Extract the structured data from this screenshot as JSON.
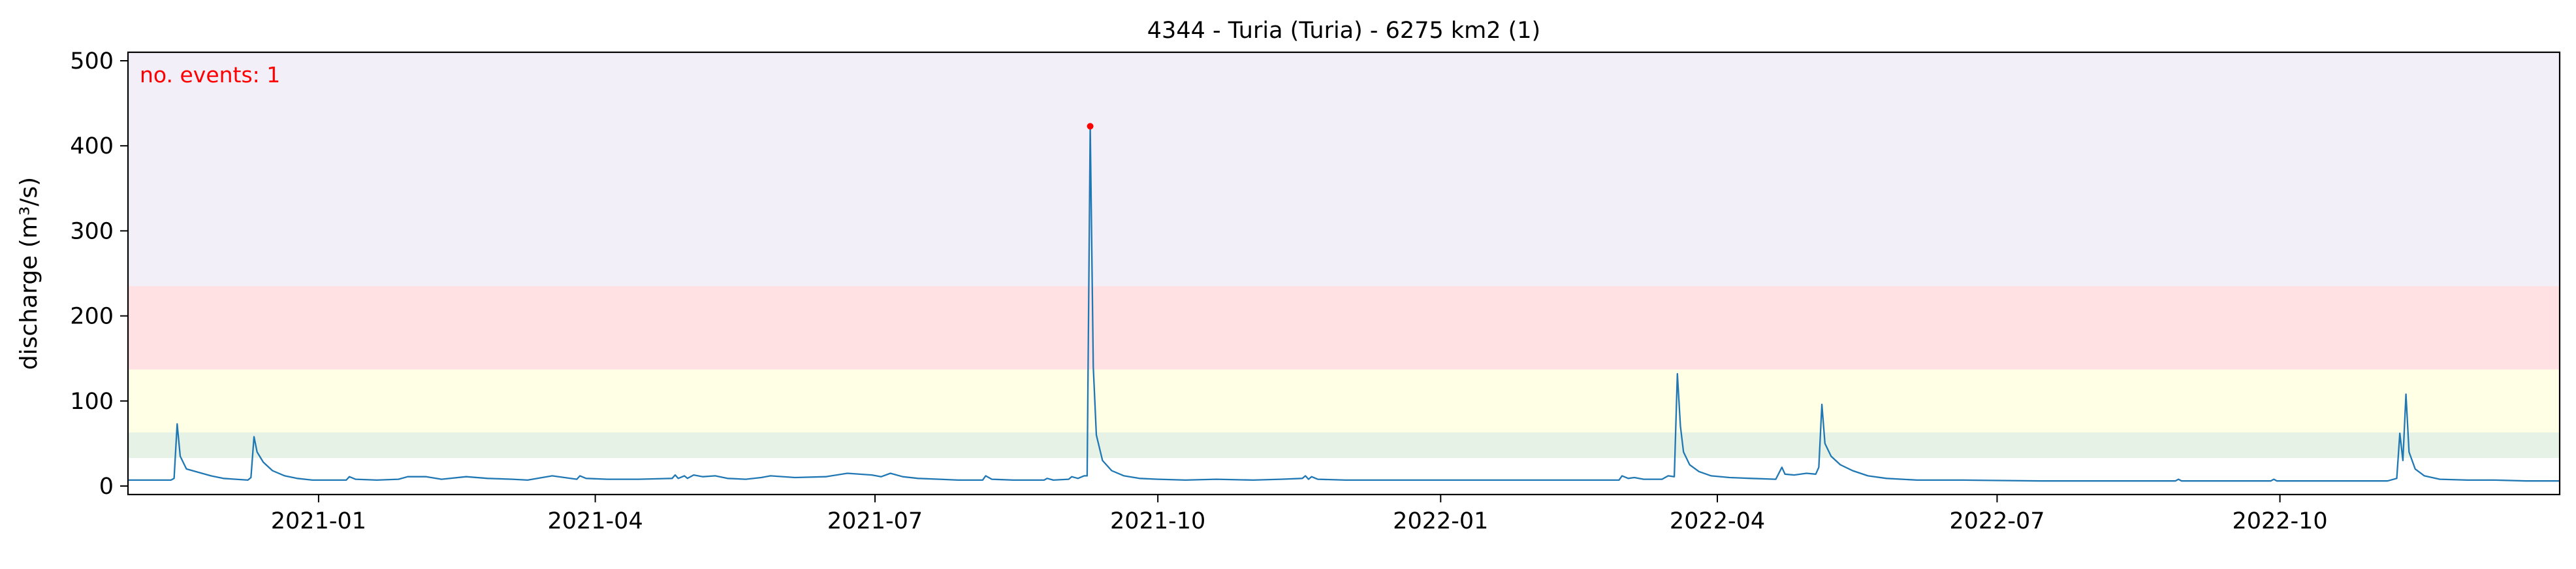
{
  "chart_data": {
    "type": "line",
    "title": "4344 - Turia (Turia) - 6275 km2 (1)",
    "xlabel": "",
    "ylabel": "discharge (m³/s)",
    "xlim": [
      "2020-10-31",
      "2022-12-31"
    ],
    "ylim": [
      -10,
      510
    ],
    "yticks": [
      0,
      100,
      200,
      300,
      400,
      500
    ],
    "xticks": [
      "2021-01",
      "2021-04",
      "2021-07",
      "2021-10",
      "2022-01",
      "2022-04",
      "2022-07",
      "2022-10"
    ],
    "grid": false,
    "threshold_bands": [
      {
        "from": 33,
        "to": 63,
        "color": "#e5f2e5"
      },
      {
        "from": 63,
        "to": 137,
        "color": "#ffffe5"
      },
      {
        "from": 137,
        "to": 235,
        "color": "#ffe1e3"
      },
      {
        "from": 235,
        "to": 510,
        "color": "#f2eff9"
      }
    ],
    "series": [
      {
        "color": "#1f77b4",
        "points": [
          [
            "2020-10-31",
            7
          ],
          [
            "2020-11-10",
            7
          ],
          [
            "2020-11-14",
            7
          ],
          [
            "2020-11-15",
            9
          ],
          [
            "2020-11-16",
            73
          ],
          [
            "2020-11-17",
            35
          ],
          [
            "2020-11-19",
            20
          ],
          [
            "2020-11-23",
            16
          ],
          [
            "2020-11-27",
            12
          ],
          [
            "2020-12-01",
            9
          ],
          [
            "2020-12-05",
            8
          ],
          [
            "2020-12-09",
            7
          ],
          [
            "2020-12-10",
            10
          ],
          [
            "2020-12-11",
            58
          ],
          [
            "2020-12-12",
            40
          ],
          [
            "2020-12-14",
            28
          ],
          [
            "2020-12-17",
            18
          ],
          [
            "2020-12-21",
            12
          ],
          [
            "2020-12-25",
            9
          ],
          [
            "2020-12-30",
            7
          ],
          [
            "2021-01-10",
            7
          ],
          [
            "2021-01-11",
            11
          ],
          [
            "2021-01-13",
            8
          ],
          [
            "2021-01-20",
            7
          ],
          [
            "2021-01-27",
            8
          ],
          [
            "2021-01-30",
            11
          ],
          [
            "2021-02-05",
            11
          ],
          [
            "2021-02-10",
            8
          ],
          [
            "2021-02-18",
            11
          ],
          [
            "2021-02-25",
            9
          ],
          [
            "2021-03-05",
            8
          ],
          [
            "2021-03-10",
            7
          ],
          [
            "2021-03-18",
            12
          ],
          [
            "2021-03-22",
            10
          ],
          [
            "2021-03-26",
            8
          ],
          [
            "2021-03-27",
            12
          ],
          [
            "2021-03-29",
            9
          ],
          [
            "2021-04-05",
            8
          ],
          [
            "2021-04-15",
            8
          ],
          [
            "2021-04-26",
            9
          ],
          [
            "2021-04-27",
            13
          ],
          [
            "2021-04-28",
            9
          ],
          [
            "2021-04-30",
            12
          ],
          [
            "2021-05-01",
            9
          ],
          [
            "2021-05-03",
            13
          ],
          [
            "2021-05-06",
            11
          ],
          [
            "2021-05-10",
            12
          ],
          [
            "2021-05-14",
            9
          ],
          [
            "2021-05-20",
            8
          ],
          [
            "2021-05-25",
            10
          ],
          [
            "2021-05-28",
            12
          ],
          [
            "2021-06-05",
            10
          ],
          [
            "2021-06-15",
            11
          ],
          [
            "2021-06-22",
            15
          ],
          [
            "2021-06-30",
            13
          ],
          [
            "2021-07-03",
            11
          ],
          [
            "2021-07-06",
            15
          ],
          [
            "2021-07-10",
            11
          ],
          [
            "2021-07-15",
            9
          ],
          [
            "2021-07-22",
            8
          ],
          [
            "2021-07-28",
            7
          ],
          [
            "2021-08-05",
            7
          ],
          [
            "2021-08-06",
            12
          ],
          [
            "2021-08-08",
            8
          ],
          [
            "2021-08-15",
            7
          ],
          [
            "2021-08-25",
            7
          ],
          [
            "2021-08-26",
            9
          ],
          [
            "2021-08-28",
            7
          ],
          [
            "2021-09-02",
            8
          ],
          [
            "2021-09-03",
            11
          ],
          [
            "2021-09-05",
            9
          ],
          [
            "2021-09-07",
            12
          ],
          [
            "2021-09-08",
            12
          ],
          [
            "2021-09-09",
            423
          ],
          [
            "2021-09-10",
            140
          ],
          [
            "2021-09-11",
            60
          ],
          [
            "2021-09-13",
            30
          ],
          [
            "2021-09-16",
            18
          ],
          [
            "2021-09-20",
            12
          ],
          [
            "2021-09-25",
            9
          ],
          [
            "2021-10-01",
            8
          ],
          [
            "2021-10-10",
            7
          ],
          [
            "2021-10-20",
            8
          ],
          [
            "2021-11-01",
            7
          ],
          [
            "2021-11-10",
            8
          ],
          [
            "2021-11-17",
            9
          ],
          [
            "2021-11-18",
            12
          ],
          [
            "2021-11-19",
            8
          ],
          [
            "2021-11-20",
            11
          ],
          [
            "2021-11-22",
            8
          ],
          [
            "2021-12-01",
            7
          ],
          [
            "2021-12-15",
            7
          ],
          [
            "2022-01-01",
            7
          ],
          [
            "2022-01-20",
            7
          ],
          [
            "2022-02-10",
            7
          ],
          [
            "2022-02-28",
            7
          ],
          [
            "2022-03-01",
            12
          ],
          [
            "2022-03-03",
            9
          ],
          [
            "2022-03-05",
            10
          ],
          [
            "2022-03-08",
            8
          ],
          [
            "2022-03-14",
            8
          ],
          [
            "2022-03-16",
            12
          ],
          [
            "2022-03-18",
            11
          ],
          [
            "2022-03-19",
            132
          ],
          [
            "2022-03-20",
            70
          ],
          [
            "2022-03-21",
            40
          ],
          [
            "2022-03-23",
            25
          ],
          [
            "2022-03-26",
            17
          ],
          [
            "2022-03-30",
            12
          ],
          [
            "2022-04-05",
            10
          ],
          [
            "2022-04-12",
            9
          ],
          [
            "2022-04-20",
            8
          ],
          [
            "2022-04-22",
            22
          ],
          [
            "2022-04-23",
            14
          ],
          [
            "2022-04-26",
            13
          ],
          [
            "2022-04-30",
            15
          ],
          [
            "2022-05-03",
            14
          ],
          [
            "2022-05-04",
            22
          ],
          [
            "2022-05-05",
            96
          ],
          [
            "2022-05-06",
            50
          ],
          [
            "2022-05-08",
            35
          ],
          [
            "2022-05-11",
            25
          ],
          [
            "2022-05-15",
            18
          ],
          [
            "2022-05-20",
            12
          ],
          [
            "2022-05-26",
            9
          ],
          [
            "2022-06-05",
            7
          ],
          [
            "2022-06-20",
            7
          ],
          [
            "2022-07-15",
            6
          ],
          [
            "2022-08-10",
            6
          ],
          [
            "2022-08-28",
            6
          ],
          [
            "2022-08-29",
            8
          ],
          [
            "2022-08-30",
            6
          ],
          [
            "2022-09-15",
            6
          ],
          [
            "2022-09-28",
            6
          ],
          [
            "2022-09-29",
            8
          ],
          [
            "2022-09-30",
            6
          ],
          [
            "2022-10-15",
            6
          ],
          [
            "2022-11-05",
            6
          ],
          [
            "2022-11-08",
            9
          ],
          [
            "2022-11-09",
            62
          ],
          [
            "2022-11-10",
            30
          ],
          [
            "2022-11-11",
            108
          ],
          [
            "2022-11-12",
            40
          ],
          [
            "2022-11-14",
            20
          ],
          [
            "2022-11-17",
            12
          ],
          [
            "2022-11-22",
            8
          ],
          [
            "2022-12-01",
            7
          ],
          [
            "2022-12-10",
            7
          ],
          [
            "2022-12-20",
            6
          ],
          [
            "2022-12-31",
            6
          ]
        ]
      }
    ],
    "events": [
      {
        "x": "2021-09-09",
        "y": 423,
        "color": "#ff0000"
      }
    ],
    "annotation": {
      "text": "no. events: 1",
      "color": "#ff0000",
      "placement": "top-left"
    }
  }
}
